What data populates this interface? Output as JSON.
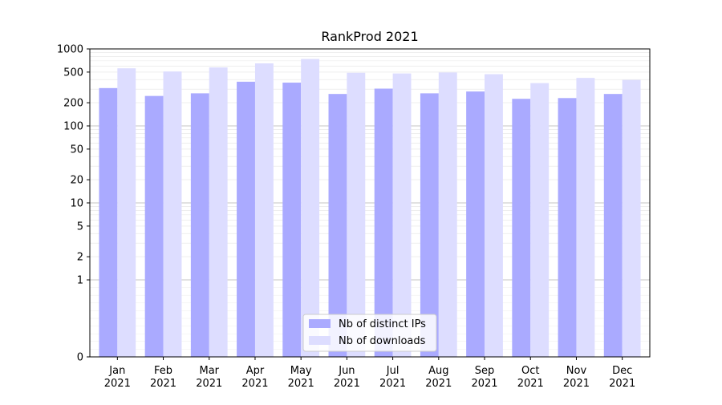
{
  "chart_data": {
    "type": "bar",
    "title": "RankProd 2021",
    "xlabel": "",
    "ylabel": "",
    "yscale": "symlog",
    "ylim": [
      0,
      1000
    ],
    "yticks": [
      0,
      1,
      2,
      5,
      10,
      20,
      50,
      100,
      200,
      500,
      1000
    ],
    "ytick_labels": [
      "0",
      "1",
      "2",
      "5",
      "10",
      "20",
      "50",
      "100",
      "200",
      "500",
      "1000"
    ],
    "grid": "on",
    "legend_position": "bottom-center",
    "categories": [
      "Jan\n2021",
      "Feb\n2021",
      "Mar\n2021",
      "Apr\n2021",
      "May\n2021",
      "Jun\n2021",
      "Jul\n2021",
      "Aug\n2021",
      "Sep\n2021",
      "Oct\n2021",
      "Nov\n2021",
      "Dec\n2021"
    ],
    "category_lines": [
      [
        "Jan",
        "2021"
      ],
      [
        "Feb",
        "2021"
      ],
      [
        "Mar",
        "2021"
      ],
      [
        "Apr",
        "2021"
      ],
      [
        "May",
        "2021"
      ],
      [
        "Jun",
        "2021"
      ],
      [
        "Jul",
        "2021"
      ],
      [
        "Aug",
        "2021"
      ],
      [
        "Sep",
        "2021"
      ],
      [
        "Oct",
        "2021"
      ],
      [
        "Nov",
        "2021"
      ],
      [
        "Dec",
        "2021"
      ]
    ],
    "series": [
      {
        "name": "Nb of distinct IPs",
        "color": "#aaaaff",
        "values": [
          310,
          245,
          265,
          375,
          365,
          260,
          305,
          265,
          280,
          225,
          230,
          260
        ]
      },
      {
        "name": "Nb of downloads",
        "color": "#ddddff",
        "values": [
          560,
          510,
          575,
          650,
          740,
          490,
          480,
          495,
          470,
          360,
          420,
          395
        ]
      }
    ]
  }
}
